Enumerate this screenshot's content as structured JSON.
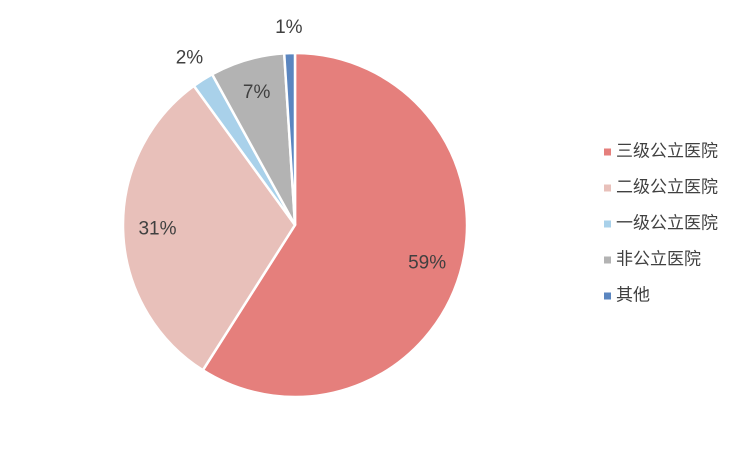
{
  "chart_data": {
    "type": "pie",
    "categories": [
      "三级公立医院",
      "二级公立医院",
      "一级公立医院",
      "非公立医院",
      "其他"
    ],
    "values": [
      59,
      31,
      2,
      7,
      1
    ],
    "value_labels": [
      "59%",
      "31%",
      "2%",
      "7%",
      "1%"
    ],
    "colors": [
      "#e57f7c",
      "#e8c0ba",
      "#a9d1ea",
      "#b3b3b3",
      "#5b86c0"
    ],
    "legend": "right"
  }
}
